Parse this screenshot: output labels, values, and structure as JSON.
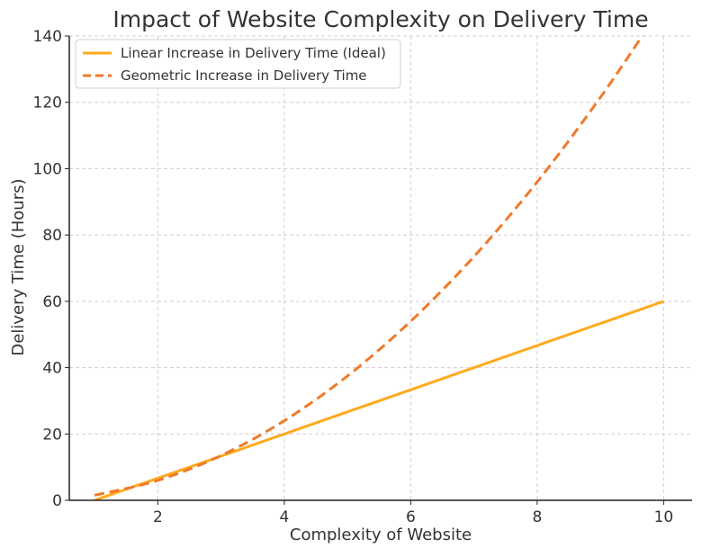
{
  "chart_data": {
    "type": "line",
    "title": "Impact of Website Complexity on Delivery Time",
    "xlabel": "Complexity of Website",
    "ylabel": "Delivery Time (Hours)",
    "xlim": [
      0.6,
      10.45
    ],
    "ylim": [
      0,
      140
    ],
    "xticks": [
      2,
      4,
      6,
      8,
      10
    ],
    "yticks": [
      0,
      20,
      40,
      60,
      80,
      100,
      120,
      140
    ],
    "grid": true,
    "legend_position": "top-left",
    "series": [
      {
        "name": "Linear Increase in Delivery Time (Ideal)",
        "style": "solid",
        "color": "#ffaa1d",
        "x": [
          1,
          2,
          3,
          4,
          5,
          6,
          7,
          8,
          9,
          10
        ],
        "y": [
          0,
          6.67,
          13.33,
          20,
          26.67,
          33.33,
          40,
          46.67,
          53.33,
          60
        ]
      },
      {
        "name": "Geometric Increase in Delivery Time",
        "style": "dashed",
        "color": "#f07a2a",
        "x": [
          1,
          2,
          3,
          4,
          5,
          6,
          7,
          8,
          9,
          9.8
        ],
        "y": [
          1.5,
          6,
          13.5,
          24,
          37.5,
          54,
          73.5,
          96,
          121.5,
          144
        ]
      }
    ]
  }
}
